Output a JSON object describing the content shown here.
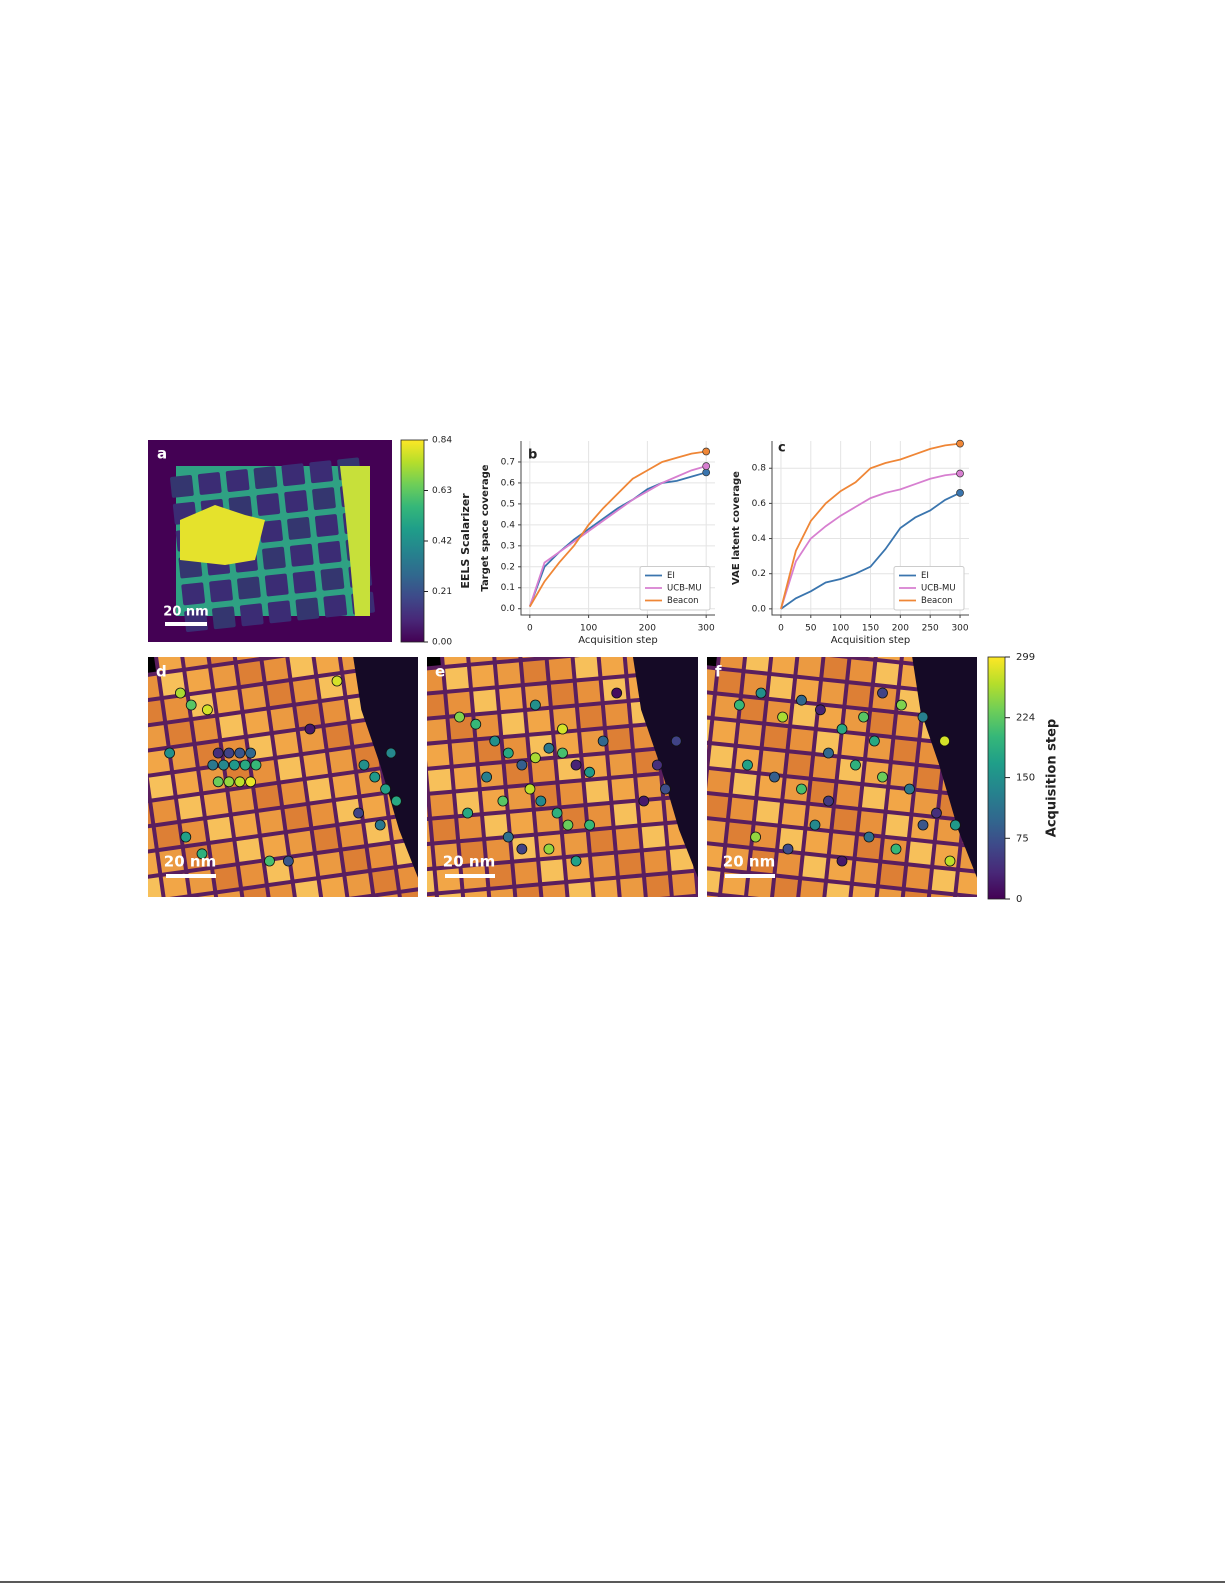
{
  "panel_a": {
    "label": "a",
    "scale_bar": "20 nm",
    "colorbar": {
      "label": "EELS Scalarizer",
      "lim": [
        0,
        0.84
      ],
      "ticks": [
        {
          "value": 0,
          "label": "0.00"
        },
        0.21,
        0.42,
        0.63,
        0.84
      ]
    }
  },
  "chart_data": [
    {
      "type": "line",
      "panel_label": "b",
      "x_label": "Acquisition step",
      "y_label": "Target space coverage",
      "x": [
        0,
        25,
        50,
        75,
        100,
        125,
        150,
        175,
        200,
        225,
        250,
        275,
        300
      ],
      "series": [
        {
          "name": "EI",
          "color": "#3a75ae",
          "values": [
            0.01,
            0.2,
            0.27,
            0.33,
            0.38,
            0.43,
            0.48,
            0.52,
            0.57,
            0.6,
            0.61,
            0.63,
            0.65
          ]
        },
        {
          "name": "UCB-MU",
          "color": "#d77fd0",
          "values": [
            0.01,
            0.22,
            0.27,
            0.32,
            0.37,
            0.42,
            0.47,
            0.52,
            0.56,
            0.6,
            0.63,
            0.66,
            0.68
          ]
        },
        {
          "name": "Beacon",
          "color": "#ef8636",
          "values": [
            0.01,
            0.13,
            0.22,
            0.3,
            0.4,
            0.48,
            0.55,
            0.62,
            0.66,
            0.7,
            0.72,
            0.74,
            0.75
          ]
        }
      ],
      "xlim": [
        -15,
        315
      ],
      "xticks": [
        0,
        100,
        200,
        300
      ],
      "ylim": [
        -0.03,
        0.8
      ],
      "yticks": [
        {
          "value": 0,
          "label": "0.0"
        },
        0.1,
        0.2,
        0.3,
        0.4,
        0.5,
        0.6,
        0.7
      ],
      "grid": true,
      "legend": "lower right"
    },
    {
      "type": "line",
      "panel_label": "c",
      "x_label": "Acquisition step",
      "y_label": "VAE latent coverage",
      "x": [
        0,
        25,
        50,
        75,
        100,
        125,
        150,
        175,
        200,
        225,
        250,
        275,
        300
      ],
      "series": [
        {
          "name": "EI",
          "color": "#3a75ae",
          "values": [
            0.0,
            0.06,
            0.1,
            0.15,
            0.17,
            0.2,
            0.24,
            0.34,
            0.46,
            0.52,
            0.56,
            0.62,
            0.66
          ]
        },
        {
          "name": "UCB-MU",
          "color": "#d77fd0",
          "values": [
            0.0,
            0.27,
            0.4,
            0.47,
            0.53,
            0.58,
            0.63,
            0.66,
            0.68,
            0.71,
            0.74,
            0.76,
            0.77
          ]
        },
        {
          "name": "Beacon",
          "color": "#ef8636",
          "values": [
            0.0,
            0.33,
            0.5,
            0.6,
            0.67,
            0.72,
            0.8,
            0.83,
            0.85,
            0.88,
            0.91,
            0.93,
            0.94
          ]
        }
      ],
      "xlim": [
        -15,
        315
      ],
      "xticks": [
        0,
        50,
        100,
        150,
        200,
        250,
        300
      ],
      "ylim": [
        -0.035,
        0.955
      ],
      "yticks": [
        {
          "value": 0,
          "label": "0.0"
        },
        0.2,
        0.4,
        0.6,
        0.8
      ],
      "grid": true,
      "legend": "lower right"
    }
  ],
  "maps": [
    {
      "label": "d",
      "scale_bar": "20 nm",
      "x": [
        12,
        16,
        22,
        26,
        30,
        34,
        38,
        24,
        28,
        32,
        36,
        40,
        26,
        30,
        34,
        38,
        8,
        14,
        20,
        45,
        70,
        80,
        84,
        88,
        92,
        86,
        90,
        78,
        52,
        60
      ],
      "y": [
        15,
        20,
        22,
        40,
        40,
        40,
        40,
        45,
        45,
        45,
        45,
        45,
        52,
        52,
        52,
        52,
        40,
        75,
        82,
        85,
        10,
        45,
        50,
        55,
        60,
        70,
        40,
        65,
        85,
        30
      ],
      "step": [
        260,
        220,
        280,
        40,
        60,
        80,
        100,
        120,
        140,
        160,
        180,
        200,
        230,
        250,
        270,
        290,
        150,
        170,
        190,
        210,
        280,
        150,
        160,
        170,
        180,
        120,
        140,
        60,
        80,
        20
      ]
    },
    {
      "label": "e",
      "scale_bar": "20 nm",
      "x": [
        12,
        18,
        25,
        30,
        35,
        40,
        45,
        50,
        55,
        60,
        65,
        38,
        42,
        48,
        52,
        30,
        35,
        45,
        55,
        60,
        22,
        28,
        85,
        88,
        80,
        92,
        50,
        40,
        70,
        15
      ],
      "y": [
        25,
        28,
        35,
        40,
        45,
        42,
        38,
        40,
        45,
        48,
        35,
        55,
        60,
        65,
        70,
        75,
        80,
        80,
        85,
        70,
        50,
        60,
        45,
        55,
        60,
        35,
        30,
        20,
        15,
        65
      ],
      "step": [
        240,
        200,
        150,
        180,
        90,
        260,
        120,
        210,
        30,
        160,
        100,
        270,
        140,
        190,
        230,
        110,
        60,
        250,
        170,
        200,
        130,
        220,
        40,
        70,
        20,
        60,
        280,
        150,
        10,
        180
      ]
    },
    {
      "label": "f",
      "scale_bar": "20 nm",
      "x": [
        12,
        20,
        28,
        35,
        42,
        50,
        58,
        65,
        72,
        80,
        88,
        15,
        25,
        35,
        45,
        55,
        65,
        75,
        85,
        92,
        18,
        30,
        40,
        50,
        60,
        70,
        80,
        90,
        45,
        62
      ],
      "y": [
        20,
        15,
        25,
        18,
        22,
        30,
        25,
        15,
        20,
        25,
        35,
        45,
        50,
        55,
        60,
        45,
        50,
        55,
        65,
        70,
        75,
        80,
        70,
        85,
        75,
        80,
        70,
        85,
        40,
        35
      ],
      "step": [
        200,
        150,
        260,
        100,
        30,
        180,
        220,
        60,
        240,
        130,
        280,
        170,
        90,
        210,
        50,
        190,
        230,
        120,
        40,
        160,
        250,
        70,
        140,
        20,
        110,
        200,
        80,
        270,
        100,
        180
      ]
    }
  ],
  "step_colorbar": {
    "label": "Acquisition step",
    "lim": [
      0,
      299
    ],
    "ticks": [
      0,
      75,
      150,
      224,
      299
    ]
  }
}
